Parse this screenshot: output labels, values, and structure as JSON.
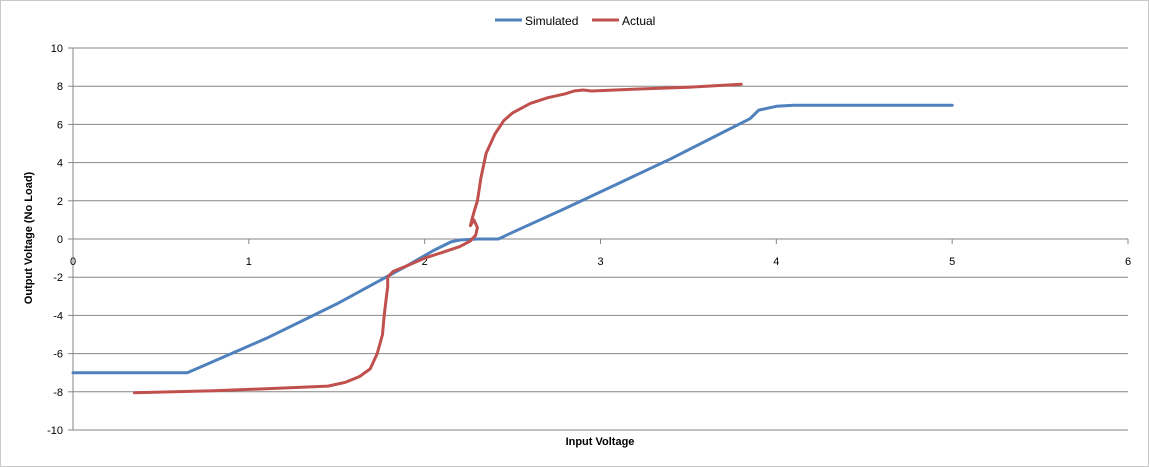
{
  "chart_data": {
    "type": "line",
    "title": "",
    "xlabel": "Input Voltage",
    "ylabel": "Output Voltage (No Load)",
    "xlim": [
      0,
      6
    ],
    "ylim": [
      -10,
      10
    ],
    "xticks": [
      0,
      1,
      2,
      3,
      4,
      5,
      6
    ],
    "yticks": [
      -10,
      -8,
      -6,
      -4,
      -2,
      0,
      2,
      4,
      6,
      8,
      10
    ],
    "grid": "horizontal",
    "legend_position": "top",
    "series": [
      {
        "name": "Simulated",
        "color": "#4f81bd",
        "points": [
          [
            0,
            -7.0
          ],
          [
            0.65,
            -7.0
          ],
          [
            0.75,
            -6.6
          ],
          [
            0.9,
            -6.0
          ],
          [
            1.1,
            -5.2
          ],
          [
            1.3,
            -4.3
          ],
          [
            1.5,
            -3.4
          ],
          [
            1.7,
            -2.4
          ],
          [
            1.9,
            -1.4
          ],
          [
            2.05,
            -0.6
          ],
          [
            2.15,
            -0.15
          ],
          [
            2.2,
            -0.05
          ],
          [
            2.3,
            0.0
          ],
          [
            2.42,
            0.0
          ],
          [
            2.5,
            0.35
          ],
          [
            2.8,
            1.6
          ],
          [
            3.1,
            2.9
          ],
          [
            3.4,
            4.2
          ],
          [
            3.7,
            5.6
          ],
          [
            3.85,
            6.3
          ],
          [
            3.9,
            6.75
          ],
          [
            4.0,
            6.95
          ],
          [
            4.1,
            7.0
          ],
          [
            5.0,
            7.0
          ]
        ]
      },
      {
        "name": "Actual",
        "color": "#c0504d",
        "points": [
          [
            0.35,
            -8.05
          ],
          [
            0.8,
            -7.95
          ],
          [
            1.2,
            -7.8
          ],
          [
            1.45,
            -7.7
          ],
          [
            1.55,
            -7.5
          ],
          [
            1.63,
            -7.2
          ],
          [
            1.69,
            -6.8
          ],
          [
            1.73,
            -6.0
          ],
          [
            1.76,
            -5.0
          ],
          [
            1.77,
            -4.0
          ],
          [
            1.78,
            -3.2
          ],
          [
            1.79,
            -2.5
          ],
          [
            1.79,
            -2.0
          ],
          [
            1.82,
            -1.7
          ],
          [
            1.9,
            -1.4
          ],
          [
            2.0,
            -1.0
          ],
          [
            2.1,
            -0.7
          ],
          [
            2.2,
            -0.4
          ],
          [
            2.26,
            -0.1
          ],
          [
            2.29,
            0.2
          ],
          [
            2.3,
            0.6
          ],
          [
            2.28,
            1.0
          ],
          [
            2.26,
            0.7
          ],
          [
            2.28,
            1.4
          ],
          [
            2.3,
            2.0
          ],
          [
            2.31,
            2.6
          ],
          [
            2.32,
            3.2
          ],
          [
            2.35,
            4.5
          ],
          [
            2.4,
            5.5
          ],
          [
            2.45,
            6.2
          ],
          [
            2.5,
            6.6
          ],
          [
            2.6,
            7.1
          ],
          [
            2.7,
            7.4
          ],
          [
            2.8,
            7.6
          ],
          [
            2.85,
            7.75
          ],
          [
            2.9,
            7.8
          ],
          [
            2.95,
            7.75
          ],
          [
            3.2,
            7.85
          ],
          [
            3.5,
            7.95
          ],
          [
            3.8,
            8.1
          ]
        ]
      }
    ]
  }
}
